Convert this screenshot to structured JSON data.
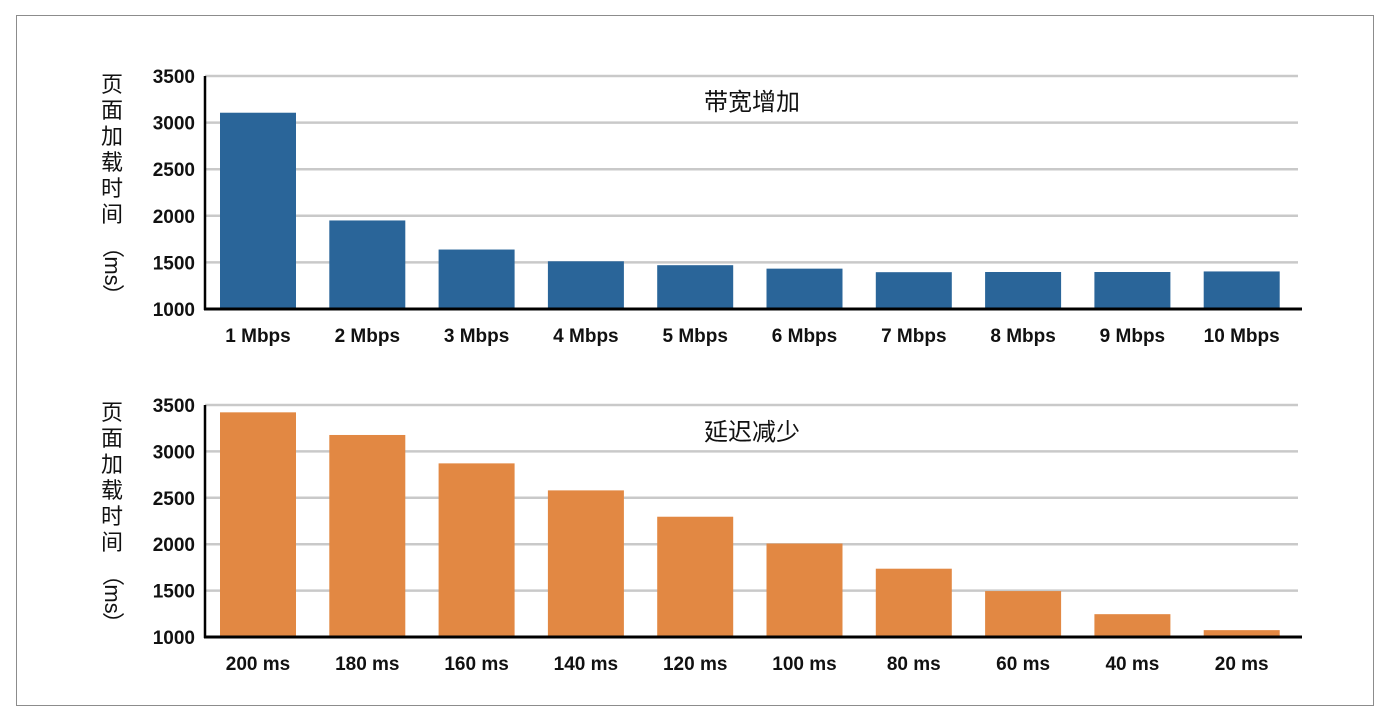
{
  "chart_data": [
    {
      "type": "bar",
      "title": "带宽增加",
      "ylabel": "页面加载时间（ms）",
      "xlabel": "",
      "ylim": [
        1000,
        3500
      ],
      "yticks": [
        1000,
        1500,
        2000,
        2500,
        3000,
        3500
      ],
      "grid": true,
      "color": "#2a6599",
      "categories": [
        "1 Mbps",
        "2 Mbps",
        "3 Mbps",
        "4 Mbps",
        "5 Mbps",
        "6 Mbps",
        "7 Mbps",
        "8 Mbps",
        "9 Mbps",
        "10 Mbps"
      ],
      "values": [
        3106,
        1950,
        1638,
        1512,
        1470,
        1433,
        1395,
        1397,
        1397,
        1403
      ]
    },
    {
      "type": "bar",
      "title": "延迟减少",
      "ylabel": "页面加载时间（ms）",
      "xlabel": "",
      "ylim": [
        1000,
        3500
      ],
      "yticks": [
        1000,
        1500,
        2000,
        2500,
        3000,
        3500
      ],
      "grid": true,
      "color": "#e28843",
      "categories": [
        "200 ms",
        "180 ms",
        "160 ms",
        "140 ms",
        "120 ms",
        "100 ms",
        "80 ms",
        "60 ms",
        "40 ms",
        "20 ms"
      ],
      "values": [
        3421,
        3177,
        2871,
        2580,
        2296,
        2007,
        1736,
        1495,
        1246,
        1074
      ]
    }
  ]
}
